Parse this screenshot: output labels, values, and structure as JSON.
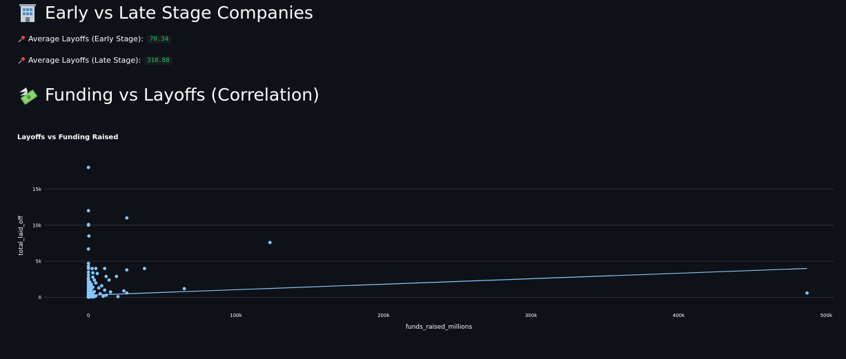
{
  "section1": {
    "title": "Early vs Late Stage Companies",
    "icon": "office-building-icon"
  },
  "metrics": [
    {
      "label": "Average Layoffs (Early Stage):",
      "value": "70.34",
      "icon": "pushpin-icon"
    },
    {
      "label": "Average Layoffs (Late Stage):",
      "value": "318.88",
      "icon": "pushpin-icon"
    }
  ],
  "section2": {
    "title": "Funding vs Layoffs (Correlation)",
    "icon": "money-with-wings-icon"
  },
  "colors": {
    "background": "#0e1117",
    "point": "#83c9ff",
    "grid": "#2b2f3a",
    "metric_value": "#21c354"
  },
  "chart_data": {
    "type": "scatter",
    "title": "Layoffs vs Funding Raised",
    "xlabel": "funds_raised_millions",
    "ylabel": "total_laid_off",
    "xlim": [
      -30000,
      505000
    ],
    "ylim": [
      -1000,
      20000
    ],
    "xticks": [
      0,
      100000,
      200000,
      300000,
      400000,
      500000
    ],
    "xtick_labels": [
      "0",
      "100k",
      "200k",
      "300k",
      "400k",
      "500k"
    ],
    "yticks": [
      0,
      5000,
      10000,
      15000
    ],
    "ytick_labels": [
      "0",
      "5k",
      "10k",
      "15k"
    ],
    "grid": "horizontal",
    "points": [
      [
        0,
        18000
      ],
      [
        0,
        12000
      ],
      [
        100,
        10100
      ],
      [
        0,
        10000
      ],
      [
        300,
        8500
      ],
      [
        0,
        6700
      ],
      [
        26000,
        11000
      ],
      [
        123000,
        7600
      ],
      [
        0,
        4700
      ],
      [
        0,
        4300
      ],
      [
        0,
        4000
      ],
      [
        2500,
        4000
      ],
      [
        5000,
        4000
      ],
      [
        11000,
        4000
      ],
      [
        38000,
        4000
      ],
      [
        26000,
        3800
      ],
      [
        0,
        3500
      ],
      [
        3000,
        3400
      ],
      [
        6000,
        3300
      ],
      [
        0,
        3100
      ],
      [
        19000,
        2900
      ],
      [
        12000,
        2900
      ],
      [
        0,
        2700
      ],
      [
        3000,
        2800
      ],
      [
        0,
        2500
      ],
      [
        14000,
        2400
      ],
      [
        4000,
        2400
      ],
      [
        0,
        2300
      ],
      [
        0,
        2200
      ],
      [
        1000,
        2100
      ],
      [
        5000,
        2000
      ],
      [
        0,
        1900
      ],
      [
        2000,
        1800
      ],
      [
        0,
        1700
      ],
      [
        9000,
        1600
      ],
      [
        0,
        1500
      ],
      [
        1000,
        1500
      ],
      [
        3000,
        1400
      ],
      [
        0,
        1300
      ],
      [
        7000,
        1300
      ],
      [
        65000,
        1200
      ],
      [
        0,
        1100
      ],
      [
        2000,
        1100
      ],
      [
        11000,
        1000
      ],
      [
        0,
        950
      ],
      [
        1500,
        900
      ],
      [
        24000,
        900
      ],
      [
        0,
        850
      ],
      [
        4000,
        800
      ],
      [
        15000,
        750
      ],
      [
        0,
        700
      ],
      [
        1000,
        650
      ],
      [
        3000,
        600
      ],
      [
        26000,
        600
      ],
      [
        0,
        550
      ],
      [
        500,
        500
      ],
      [
        2000,
        500
      ],
      [
        8000,
        500
      ],
      [
        0,
        450
      ],
      [
        1000,
        420
      ],
      [
        0,
        400
      ],
      [
        500,
        380
      ],
      [
        3000,
        350
      ],
      [
        12000,
        300
      ],
      [
        0,
        300
      ],
      [
        1500,
        280
      ],
      [
        0,
        250
      ],
      [
        800,
        220
      ],
      [
        5000,
        200
      ],
      [
        0,
        200
      ],
      [
        2000,
        180
      ],
      [
        0,
        150
      ],
      [
        10000,
        150
      ],
      [
        300,
        130
      ],
      [
        0,
        120
      ],
      [
        1200,
        100
      ],
      [
        0,
        90
      ],
      [
        4000,
        80
      ],
      [
        0,
        70
      ],
      [
        600,
        60
      ],
      [
        0,
        50
      ],
      [
        2500,
        40
      ],
      [
        0,
        30
      ],
      [
        20000,
        100
      ],
      [
        0,
        20
      ],
      [
        487000,
        600
      ]
    ],
    "trendline": {
      "x": [
        0,
        487000
      ],
      "y": [
        300,
        4000
      ]
    }
  }
}
